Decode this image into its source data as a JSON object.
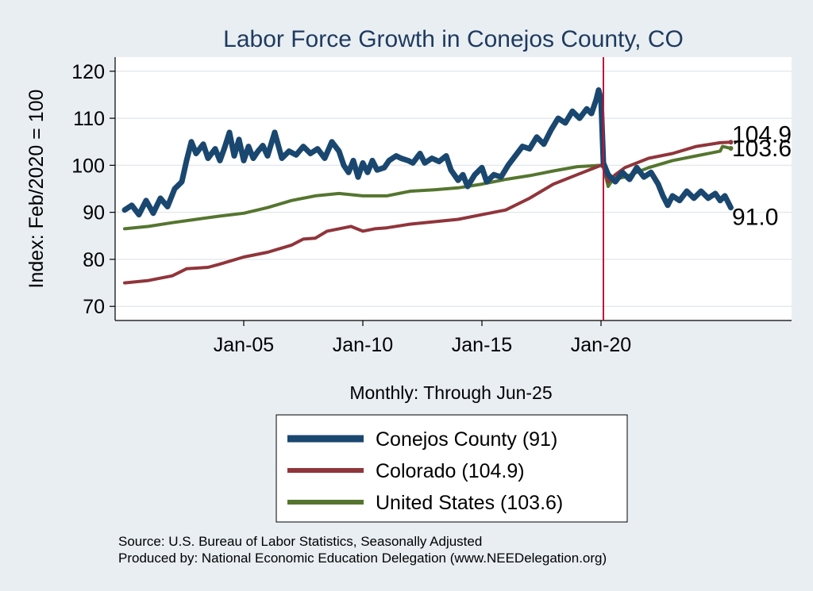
{
  "chart_data": {
    "type": "line",
    "title": "Labor Force Growth in Conejos  County, CO",
    "xlabel": "Monthly: Through Jun-25",
    "ylabel": "Index: Feb/2020 = 100",
    "xlim": [
      1999.6,
      2028.0
    ],
    "ylim": [
      67,
      123
    ],
    "yticks": [
      70,
      80,
      90,
      100,
      110,
      120
    ],
    "xticks": [
      {
        "label": "Jan-05",
        "value": 2005.0
      },
      {
        "label": "Jan-10",
        "value": 2010.0
      },
      {
        "label": "Jan-15",
        "value": 2015.0
      },
      {
        "label": "Jan-20",
        "value": 2020.0
      }
    ],
    "vline": {
      "x": 2020.1,
      "color": "#c0143c"
    },
    "series": [
      {
        "name": "Conejos  County",
        "legend": "Conejos  County (91)",
        "color": "#1a476f",
        "width": 7,
        "end_label": "91.0",
        "points": [
          [
            2000.0,
            90.5
          ],
          [
            2000.3,
            91.5
          ],
          [
            2000.6,
            89.5
          ],
          [
            2000.9,
            92.5
          ],
          [
            2001.2,
            89.8
          ],
          [
            2001.5,
            93.0
          ],
          [
            2001.8,
            91.2
          ],
          [
            2002.1,
            95.0
          ],
          [
            2002.4,
            96.5
          ],
          [
            2002.6,
            101.0
          ],
          [
            2002.8,
            105.0
          ],
          [
            2003.0,
            102.5
          ],
          [
            2003.3,
            104.5
          ],
          [
            2003.5,
            101.5
          ],
          [
            2003.8,
            103.5
          ],
          [
            2004.0,
            101.0
          ],
          [
            2004.2,
            103.8
          ],
          [
            2004.4,
            107.0
          ],
          [
            2004.6,
            102.0
          ],
          [
            2004.8,
            105.5
          ],
          [
            2005.0,
            101.0
          ],
          [
            2005.2,
            104.0
          ],
          [
            2005.4,
            101.5
          ],
          [
            2005.6,
            103.0
          ],
          [
            2005.8,
            104.2
          ],
          [
            2006.0,
            102.0
          ],
          [
            2006.3,
            107.0
          ],
          [
            2006.6,
            101.5
          ],
          [
            2006.9,
            103.0
          ],
          [
            2007.2,
            102.2
          ],
          [
            2007.5,
            104.0
          ],
          [
            2007.8,
            102.5
          ],
          [
            2008.1,
            103.5
          ],
          [
            2008.4,
            101.5
          ],
          [
            2008.7,
            105.0
          ],
          [
            2009.0,
            103.0
          ],
          [
            2009.2,
            100.0
          ],
          [
            2009.4,
            98.5
          ],
          [
            2009.6,
            101.0
          ],
          [
            2009.8,
            97.5
          ],
          [
            2010.0,
            100.5
          ],
          [
            2010.2,
            98.5
          ],
          [
            2010.4,
            101.0
          ],
          [
            2010.6,
            99.0
          ],
          [
            2010.9,
            99.5
          ],
          [
            2011.1,
            101.0
          ],
          [
            2011.4,
            102.0
          ],
          [
            2011.6,
            101.5
          ],
          [
            2011.9,
            101.0
          ],
          [
            2012.1,
            100.5
          ],
          [
            2012.4,
            102.5
          ],
          [
            2012.6,
            100.5
          ],
          [
            2012.9,
            101.5
          ],
          [
            2013.2,
            100.8
          ],
          [
            2013.5,
            102.0
          ],
          [
            2013.7,
            99.0
          ],
          [
            2014.0,
            96.8
          ],
          [
            2014.2,
            98.0
          ],
          [
            2014.4,
            95.5
          ],
          [
            2014.7,
            98.0
          ],
          [
            2015.0,
            99.5
          ],
          [
            2015.2,
            96.5
          ],
          [
            2015.5,
            98.0
          ],
          [
            2015.8,
            97.5
          ],
          [
            2016.1,
            100.0
          ],
          [
            2016.4,
            102.0
          ],
          [
            2016.7,
            104.0
          ],
          [
            2017.0,
            103.5
          ],
          [
            2017.3,
            106.0
          ],
          [
            2017.6,
            104.5
          ],
          [
            2017.9,
            107.5
          ],
          [
            2018.2,
            110.0
          ],
          [
            2018.5,
            109.0
          ],
          [
            2018.8,
            111.5
          ],
          [
            2019.1,
            110.0
          ],
          [
            2019.4,
            112.0
          ],
          [
            2019.6,
            111.0
          ],
          [
            2019.8,
            114.0
          ],
          [
            2019.9,
            116.0
          ],
          [
            2020.0,
            114.0
          ],
          [
            2020.1,
            100.5
          ],
          [
            2020.3,
            98.0
          ],
          [
            2020.6,
            96.5
          ],
          [
            2020.9,
            98.5
          ],
          [
            2021.2,
            97.0
          ],
          [
            2021.5,
            99.5
          ],
          [
            2021.8,
            97.5
          ],
          [
            2022.1,
            98.5
          ],
          [
            2022.4,
            96.0
          ],
          [
            2022.6,
            93.5
          ],
          [
            2022.8,
            91.5
          ],
          [
            2023.0,
            93.5
          ],
          [
            2023.3,
            92.5
          ],
          [
            2023.6,
            94.5
          ],
          [
            2023.9,
            93.0
          ],
          [
            2024.2,
            94.5
          ],
          [
            2024.5,
            93.0
          ],
          [
            2024.8,
            94.0
          ],
          [
            2025.0,
            92.5
          ],
          [
            2025.2,
            93.5
          ],
          [
            2025.45,
            91.0
          ]
        ]
      },
      {
        "name": "Colorado",
        "legend": "Colorado (104.9)",
        "color": "#90353b",
        "width": 4,
        "end_label": "104.9",
        "points": [
          [
            2000.0,
            75.0
          ],
          [
            2001.0,
            75.5
          ],
          [
            2002.0,
            76.5
          ],
          [
            2002.6,
            78.0
          ],
          [
            2003.5,
            78.3
          ],
          [
            2004.0,
            79.0
          ],
          [
            2005.0,
            80.5
          ],
          [
            2006.0,
            81.5
          ],
          [
            2007.0,
            83.0
          ],
          [
            2007.5,
            84.3
          ],
          [
            2008.0,
            84.5
          ],
          [
            2008.5,
            86.0
          ],
          [
            2009.0,
            86.5
          ],
          [
            2009.5,
            87.0
          ],
          [
            2010.0,
            86.0
          ],
          [
            2010.5,
            86.5
          ],
          [
            2011.0,
            86.7
          ],
          [
            2012.0,
            87.5
          ],
          [
            2013.0,
            88.0
          ],
          [
            2014.0,
            88.5
          ],
          [
            2015.0,
            89.5
          ],
          [
            2016.0,
            90.5
          ],
          [
            2017.0,
            93.0
          ],
          [
            2018.0,
            96.0
          ],
          [
            2019.0,
            98.0
          ],
          [
            2020.0,
            100.0
          ],
          [
            2020.1,
            99.8
          ],
          [
            2020.3,
            96.5
          ],
          [
            2020.6,
            98.0
          ],
          [
            2021.0,
            99.5
          ],
          [
            2022.0,
            101.5
          ],
          [
            2023.0,
            102.5
          ],
          [
            2024.0,
            104.0
          ],
          [
            2025.0,
            104.8
          ],
          [
            2025.45,
            104.9
          ]
        ]
      },
      {
        "name": "United States",
        "legend": "United States (103.6)",
        "color": "#55752f",
        "width": 4,
        "end_label": "103.6",
        "points": [
          [
            2000.0,
            86.5
          ],
          [
            2001.0,
            87.0
          ],
          [
            2002.0,
            87.8
          ],
          [
            2003.0,
            88.5
          ],
          [
            2004.0,
            89.2
          ],
          [
            2005.0,
            89.8
          ],
          [
            2006.0,
            91.0
          ],
          [
            2007.0,
            92.5
          ],
          [
            2008.0,
            93.5
          ],
          [
            2009.0,
            94.0
          ],
          [
            2010.0,
            93.5
          ],
          [
            2011.0,
            93.5
          ],
          [
            2012.0,
            94.5
          ],
          [
            2013.0,
            94.8
          ],
          [
            2014.0,
            95.2
          ],
          [
            2015.0,
            96.0
          ],
          [
            2016.0,
            97.0
          ],
          [
            2017.0,
            97.8
          ],
          [
            2018.0,
            98.8
          ],
          [
            2019.0,
            99.7
          ],
          [
            2020.0,
            100.0
          ],
          [
            2020.1,
            99.5
          ],
          [
            2020.3,
            95.5
          ],
          [
            2020.5,
            97.0
          ],
          [
            2021.0,
            97.5
          ],
          [
            2022.0,
            99.5
          ],
          [
            2023.0,
            101.0
          ],
          [
            2024.0,
            102.0
          ],
          [
            2025.0,
            103.0
          ],
          [
            2025.1,
            104.0
          ],
          [
            2025.45,
            103.6
          ]
        ]
      }
    ]
  },
  "source": {
    "line1": "Source: U.S. Bureau of Labor Statistics, Seasonally Adjusted",
    "line2": "Produced by: National Economic Education Delegation (www.NEEDelegation.org)"
  }
}
